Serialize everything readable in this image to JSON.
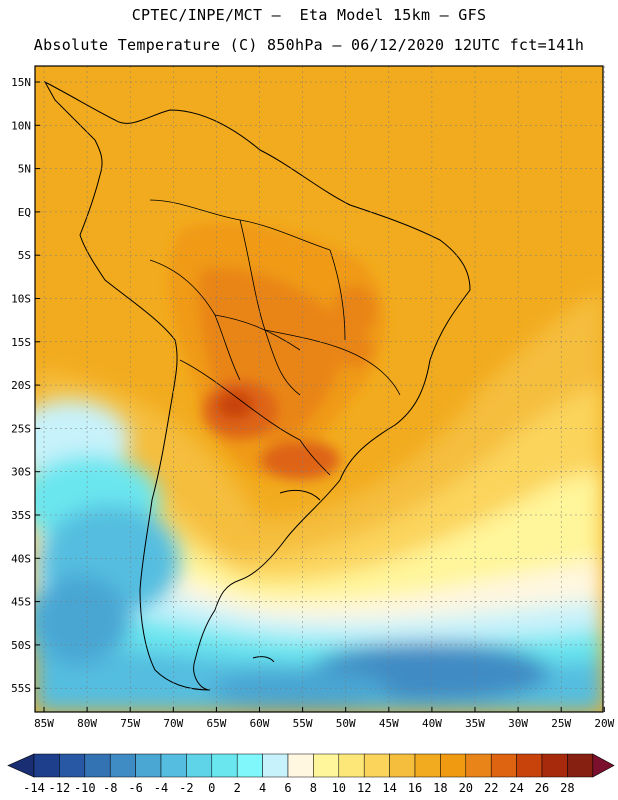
{
  "header": {
    "line1": "CPTEC/INPE/MCT –  Eta Model 15km – GFS",
    "line2": "Absolute Temperature (C) 850hPa – 06/12/2020 12UTC fct=141h"
  },
  "map": {
    "lat_labels": [
      "15N",
      "10N",
      "5N",
      "EQ",
      "5S",
      "10S",
      "15S",
      "20S",
      "25S",
      "30S",
      "35S",
      "40S",
      "45S",
      "50S",
      "55S"
    ],
    "lon_labels": [
      "85W",
      "80W",
      "75W",
      "70W",
      "65W",
      "60W",
      "55W",
      "50W",
      "45W",
      "40W",
      "35W",
      "30W",
      "25W",
      "20W"
    ]
  },
  "colorbar": {
    "labels": [
      "-14",
      "-12",
      "-10",
      "-8",
      "-6",
      "-4",
      "-2",
      "0",
      "2",
      "4",
      "6",
      "8",
      "10",
      "12",
      "14",
      "16",
      "18",
      "20",
      "22",
      "24",
      "26",
      "28"
    ],
    "colors": [
      "#1e3f8c",
      "#2857a3",
      "#3372b3",
      "#3f8bc4",
      "#4aa6d3",
      "#55bee0",
      "#5fd3e8",
      "#6ae6ef",
      "#7ff7fb",
      "#c8f2fb",
      "#fff7e0",
      "#fff59a",
      "#fde778",
      "#fbd45c",
      "#f5be3c",
      "#f2ab1e",
      "#f09a12",
      "#e98518",
      "#de6412",
      "#c8420c",
      "#a82a0c",
      "#862010"
    ],
    "arrow_left_color": "#1a2f73",
    "arrow_right_color": "#7a0f2e"
  }
}
